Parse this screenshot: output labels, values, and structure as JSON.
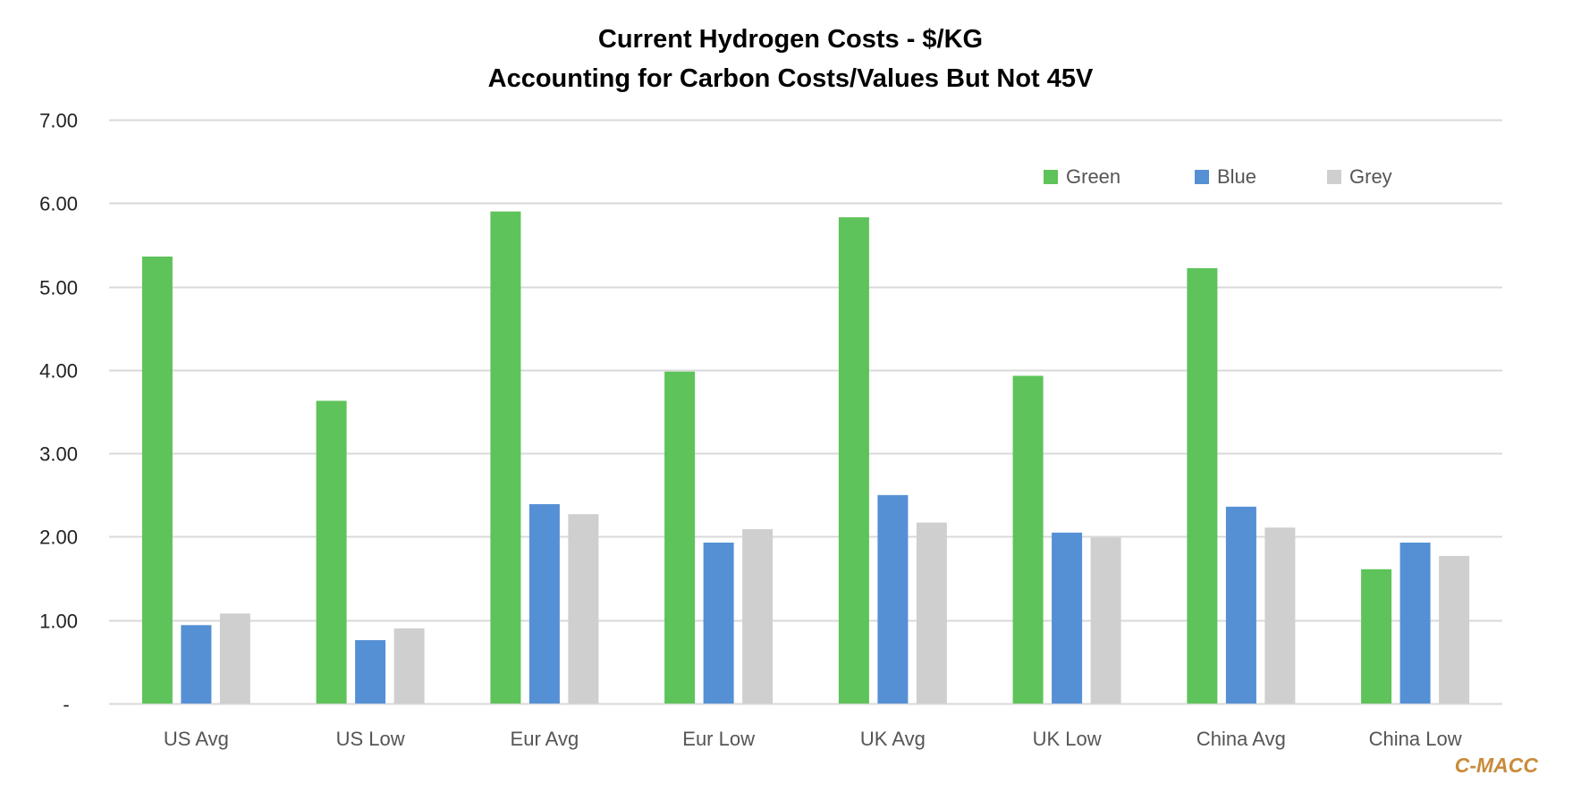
{
  "chart_data": {
    "type": "bar",
    "title": "Current Hydrogen Costs - $/KG",
    "subtitle": "Accounting for Carbon Costs/Values But Not 45V",
    "xlabel": "",
    "ylabel": "",
    "ylim": [
      0,
      7
    ],
    "yticks": [
      0,
      1,
      2,
      3,
      4,
      5,
      6,
      7
    ],
    "ytick_labels": [
      "-",
      "1.00",
      "2.00",
      "3.00",
      "4.00",
      "5.00",
      "6.00",
      "7.00"
    ],
    "grid": true,
    "legend_position": "top-right",
    "categories": [
      "US Avg",
      "US Low",
      "Eur Avg",
      "Eur Low",
      "UK Avg",
      "UK Low",
      "China Avg",
      "China Low"
    ],
    "series": [
      {
        "name": "Green",
        "color": "#5EC35A",
        "values": [
          5.36,
          3.63,
          5.9,
          3.98,
          5.83,
          3.93,
          5.22,
          1.61
        ]
      },
      {
        "name": "Blue",
        "color": "#5590D5",
        "values": [
          0.94,
          0.76,
          2.39,
          1.93,
          2.5,
          2.05,
          2.36,
          1.93
        ]
      },
      {
        "name": "Grey",
        "color": "#CFCFCF",
        "values": [
          1.08,
          0.9,
          2.27,
          2.09,
          2.17,
          1.99,
          2.11,
          1.77
        ]
      }
    ]
  },
  "watermark": {
    "text": "C-MACC",
    "color": "#C98B3A"
  },
  "colors": {
    "gridline": "#D9D9D9",
    "axis": "#D9D9D9"
  }
}
